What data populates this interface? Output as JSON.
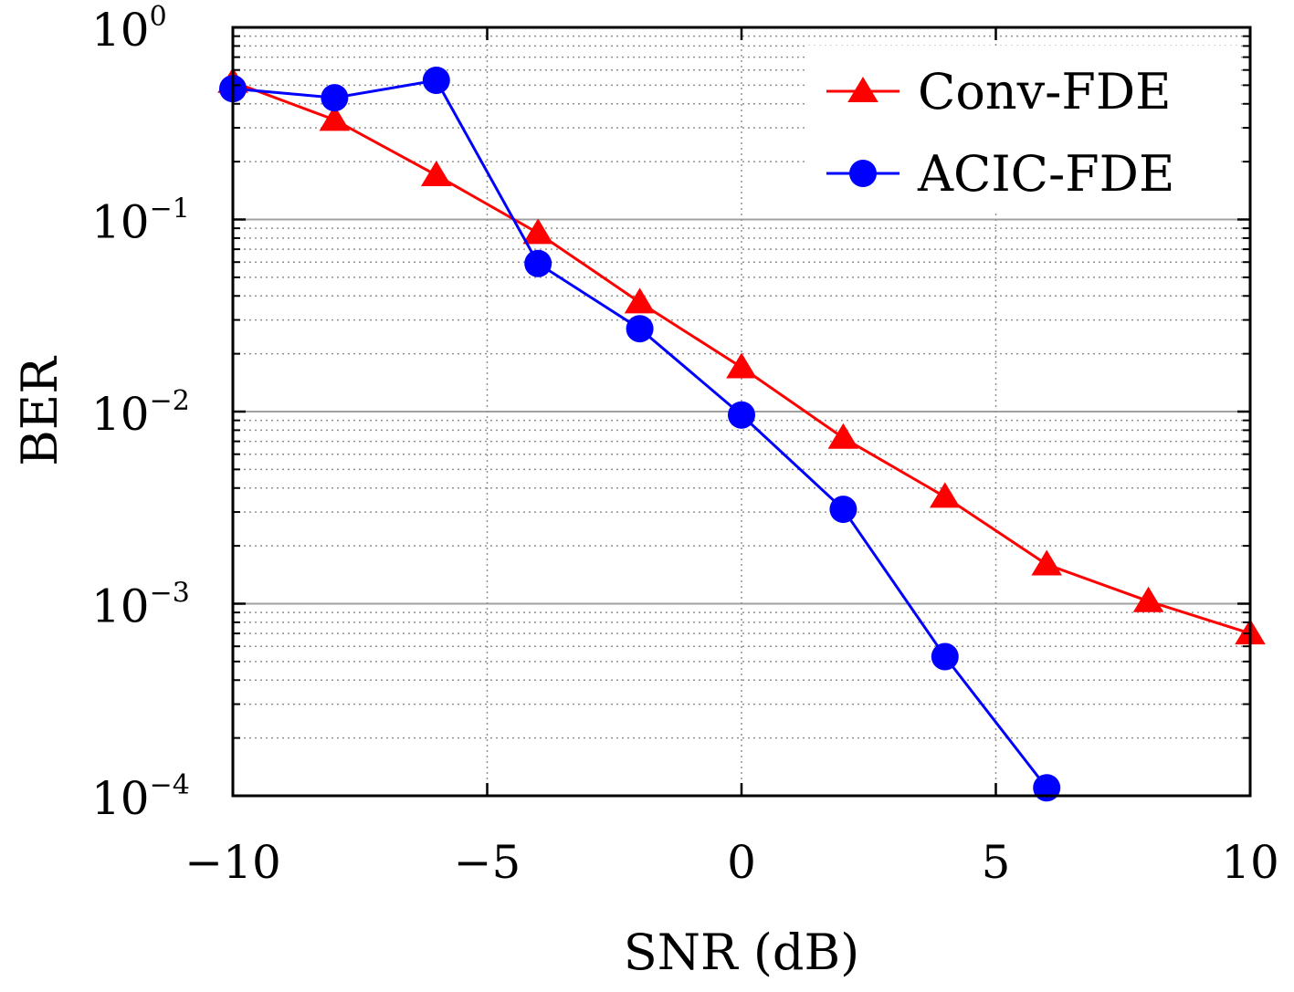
{
  "chart_data": {
    "type": "line",
    "xlabel": "SNR (dB)",
    "ylabel": "BER",
    "xlim": [
      -10,
      10
    ],
    "ylim": [
      0.0001,
      1
    ],
    "yscale": "log",
    "grid": true,
    "legend_position": "top-right",
    "x_ticks": [
      {
        "value": -10,
        "label": "−10"
      },
      {
        "value": -5,
        "label": "−5"
      },
      {
        "value": 0,
        "label": "0"
      },
      {
        "value": 5,
        "label": "5"
      },
      {
        "value": 10,
        "label": "10"
      }
    ],
    "y_ticks": [
      {
        "value": 1,
        "base": "10",
        "exp": "0"
      },
      {
        "value": 0.1,
        "base": "10",
        "exp": "−1"
      },
      {
        "value": 0.01,
        "base": "10",
        "exp": "−2"
      },
      {
        "value": 0.001,
        "base": "10",
        "exp": "−3"
      },
      {
        "value": 0.0001,
        "base": "10",
        "exp": "−4"
      }
    ],
    "series": [
      {
        "name": "Conv-FDE",
        "color": "#ff0000",
        "marker": "triangle",
        "x": [
          -10,
          -8,
          -6,
          -4,
          -2,
          0,
          2,
          4,
          6,
          8,
          10
        ],
        "y": [
          0.52,
          0.33,
          0.17,
          0.085,
          0.037,
          0.017,
          0.0073,
          0.0036,
          0.0016,
          0.00103,
          0.0007
        ]
      },
      {
        "name": "ACIC-FDE",
        "color": "#0000ff",
        "marker": "circle",
        "x": [
          -10,
          -8,
          -6,
          -4,
          -2,
          0,
          2,
          4,
          6
        ],
        "y": [
          0.48,
          0.43,
          0.53,
          0.059,
          0.027,
          0.0096,
          0.0031,
          0.00053,
          0.00011
        ]
      }
    ]
  }
}
